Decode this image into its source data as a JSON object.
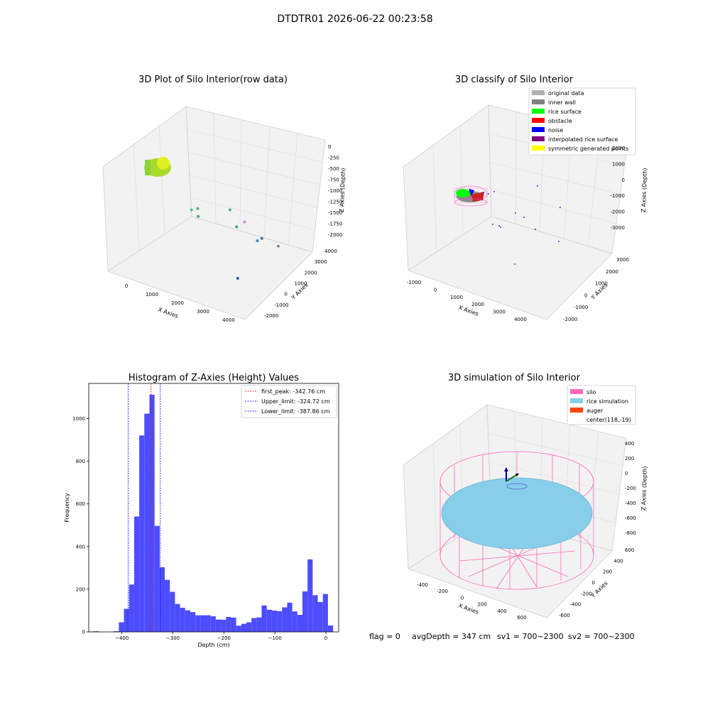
{
  "figure": {
    "suptitle": "DTDTR01 2026-06-22 00:23:58"
  },
  "footer": {
    "flag": "flag = 0",
    "avg_depth": "avgDepth = 347 cm",
    "sv1": "sv1 = 700~2300",
    "sv2": "sv2 = 700~2300"
  },
  "colors": {
    "hist_bar": "#4d4dff",
    "peak_line": "#ff0000",
    "limit_line": "#0000ff",
    "silo_wire": "#ff69b4",
    "rice_sim": "#87ceeb",
    "auger": "#ff4500"
  },
  "chart_data": [
    {
      "type": "scatter",
      "title": "3D Plot of Silo Interior(row data)",
      "xlabel": "X Axies",
      "ylabel": "Y Axies",
      "zlabel": "Z Axies (Depth)",
      "x_ticks": [
        "0",
        "1000",
        "2000",
        "3000",
        "4000"
      ],
      "y_ticks": [
        "-2000",
        "-1000",
        "0",
        "1000",
        "2000",
        "3000",
        "4000"
      ],
      "z_ticks": [
        "0",
        "-250",
        "-500",
        "-750",
        "-1000",
        "-1250",
        "-1500",
        "-1750",
        "-2000"
      ],
      "points": [
        {
          "x": 3800,
          "y": -1500,
          "z": -1500,
          "color": "#2e5b8f"
        },
        {
          "x": 3500,
          "y": 1200,
          "z": -1200,
          "color": "#3b6e9c"
        },
        {
          "x": 3400,
          "y": 2800,
          "z": -1600,
          "color": "#8a8aa0"
        },
        {
          "x": 2900,
          "y": 2200,
          "z": -1500,
          "color": "#4a80a8"
        },
        {
          "x": 2300,
          "y": 2500,
          "z": -1300,
          "color": "#cc88cc"
        },
        {
          "x": 2100,
          "y": 2300,
          "z": -1400,
          "color": "#3aa07a"
        },
        {
          "x": 1900,
          "y": 2200,
          "z": -1100,
          "color": "#45b07a"
        },
        {
          "x": 900,
          "y": 1800,
          "z": -1200,
          "color": "#3fb080"
        },
        {
          "x": 1000,
          "y": 1600,
          "z": -1300,
          "color": "#3aa878"
        },
        {
          "x": 800,
          "y": 1500,
          "z": -1200,
          "color": "#50c080"
        },
        {
          "x": 100,
          "y": 200,
          "z": -300,
          "color": "#90e090"
        },
        {
          "x": 300,
          "y": 300,
          "z": -300,
          "color": "#a0e890"
        }
      ]
    },
    {
      "type": "scatter",
      "title": "3D classify of Silo Interior",
      "xlabel": "X Axies",
      "ylabel": "Y Axies",
      "zlabel": "Z Axies (Depth)",
      "x_ticks": [
        "-1000",
        "0",
        "1000",
        "2000",
        "3000",
        "4000"
      ],
      "y_ticks": [
        "-2000",
        "-1000",
        "0",
        "1000",
        "2000",
        "3000"
      ],
      "z_ticks": [
        "2000",
        "1000",
        "0",
        "-1000",
        "-2000",
        "-3000"
      ],
      "legend_position": "upper right",
      "legend": [
        {
          "label": "original data",
          "color": "#b0b0b0"
        },
        {
          "label": "inner wall",
          "color": "#808080"
        },
        {
          "label": "rice surface",
          "color": "#00ff00"
        },
        {
          "label": "obstacle",
          "color": "#ff0000"
        },
        {
          "label": "noise",
          "color": "#0000ff"
        },
        {
          "label": "interpolated rice surface",
          "color": "#800080"
        },
        {
          "label": "symmetric generated points",
          "color": "#ffff00"
        }
      ]
    },
    {
      "type": "bar",
      "title": "Histogram of Z-Axies (Height) Values",
      "xlabel": "Depth (cm)",
      "ylabel": "Frequency",
      "xlim": [
        -465,
        25
      ],
      "ylim": [
        0,
        1165
      ],
      "x_ticks": [
        -400,
        -300,
        -200,
        -100,
        0
      ],
      "y_ticks": [
        0,
        200,
        400,
        600,
        800,
        1000
      ],
      "bin_width": 10,
      "bins": [
        {
          "x": -451,
          "v": 3
        },
        {
          "x": -411,
          "v": 3
        },
        {
          "x": -401,
          "v": 45
        },
        {
          "x": -391,
          "v": 108
        },
        {
          "x": -381,
          "v": 222
        },
        {
          "x": -371,
          "v": 541
        },
        {
          "x": -361,
          "v": 921
        },
        {
          "x": -351,
          "v": 1023
        },
        {
          "x": -341,
          "v": 1112
        },
        {
          "x": -331,
          "v": 497
        },
        {
          "x": -321,
          "v": 303
        },
        {
          "x": -311,
          "v": 244
        },
        {
          "x": -301,
          "v": 188
        },
        {
          "x": -291,
          "v": 131
        },
        {
          "x": -281,
          "v": 113
        },
        {
          "x": -271,
          "v": 101
        },
        {
          "x": -261,
          "v": 93
        },
        {
          "x": -251,
          "v": 78
        },
        {
          "x": -241,
          "v": 78
        },
        {
          "x": -231,
          "v": 78
        },
        {
          "x": -221,
          "v": 73
        },
        {
          "x": -211,
          "v": 58
        },
        {
          "x": -201,
          "v": 57
        },
        {
          "x": -191,
          "v": 70
        },
        {
          "x": -181,
          "v": 67
        },
        {
          "x": -171,
          "v": 29
        },
        {
          "x": -161,
          "v": 38
        },
        {
          "x": -151,
          "v": 45
        },
        {
          "x": -141,
          "v": 65
        },
        {
          "x": -131,
          "v": 68
        },
        {
          "x": -121,
          "v": 124
        },
        {
          "x": -111,
          "v": 104
        },
        {
          "x": -101,
          "v": 100
        },
        {
          "x": -91,
          "v": 97
        },
        {
          "x": -81,
          "v": 115
        },
        {
          "x": -71,
          "v": 137
        },
        {
          "x": -61,
          "v": 96
        },
        {
          "x": -51,
          "v": 80
        },
        {
          "x": -41,
          "v": 190
        },
        {
          "x": -31,
          "v": 340
        },
        {
          "x": -21,
          "v": 172
        },
        {
          "x": -11,
          "v": 140
        },
        {
          "x": -1,
          "v": 178
        },
        {
          "x": 9,
          "v": 30
        }
      ],
      "vlines": [
        {
          "x": -342.76,
          "label": "first_peak: -342.76 cm",
          "color": "#ff0000"
        },
        {
          "x": -324.72,
          "label": "Upper_limit: -324.72 cm",
          "color": "#0000ff"
        },
        {
          "x": -387.86,
          "label": "Lower_limit: -387.86 cm",
          "color": "#0000ff"
        }
      ],
      "legend_position": "upper right"
    },
    {
      "type": "scatter",
      "title": "3D simulation of Silo Interior",
      "xlabel": "X Axies",
      "ylabel": "Y Axies",
      "zlabel": "Z Axies (Depth)",
      "x_ticks": [
        "-400",
        "-200",
        "0",
        "200",
        "400",
        "600"
      ],
      "y_ticks": [
        "-600",
        "-400",
        "-200",
        "0",
        "200",
        "400",
        "600"
      ],
      "z_ticks": [
        "400",
        "200",
        "0",
        "-200",
        "-400",
        "-600",
        "-800"
      ],
      "legend_position": "upper right",
      "legend": [
        {
          "label": "silo",
          "color": "#ff69b4"
        },
        {
          "label": "rice simulation",
          "color": "#87ceeb"
        },
        {
          "label": "auger",
          "color": "#ff4500"
        },
        {
          "label": "center(118,-19)",
          "color": ""
        }
      ]
    }
  ]
}
